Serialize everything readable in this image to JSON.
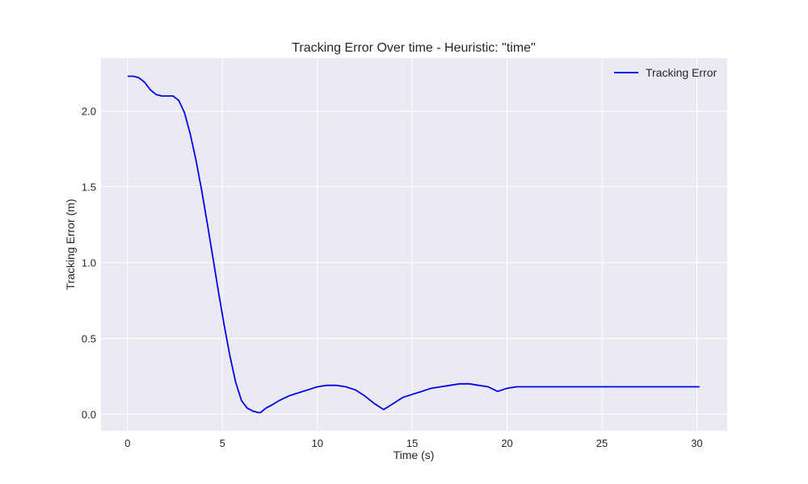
{
  "chart_data": {
    "type": "line",
    "title": "Tracking Error Over time - Heuristic: \"time\"",
    "xlabel": "Time (s)",
    "ylabel": "Tracking Error (m)",
    "xlim": [
      -1.4,
      31.6
    ],
    "ylim": [
      -0.11,
      2.35
    ],
    "xticks": [
      0,
      5,
      10,
      15,
      20,
      25,
      30
    ],
    "yticks": [
      0.0,
      0.5,
      1.0,
      1.5,
      2.0
    ],
    "xtick_labels": [
      "0",
      "5",
      "10",
      "15",
      "20",
      "25",
      "30"
    ],
    "ytick_labels": [
      "0.0",
      "0.5",
      "1.0",
      "1.5",
      "2.0"
    ],
    "grid": true,
    "legend_position": "top-right",
    "background_color": "#eaeaf2",
    "grid_color": "#ffffff",
    "series": [
      {
        "name": "Tracking Error",
        "color": "#0000ee",
        "x": [
          0,
          0.3,
          0.6,
          0.9,
          1.2,
          1.5,
          1.8,
          2.1,
          2.4,
          2.7,
          3.0,
          3.3,
          3.6,
          3.9,
          4.2,
          4.5,
          4.8,
          5.1,
          5.4,
          5.7,
          6.0,
          6.3,
          6.6,
          6.9,
          7.0,
          7.3,
          7.6,
          8.0,
          8.5,
          9.0,
          9.5,
          10.0,
          10.5,
          11.0,
          11.5,
          12.0,
          12.5,
          13.0,
          13.5,
          14.0,
          14.5,
          15.0,
          15.5,
          16.0,
          16.5,
          17.0,
          17.5,
          18.0,
          18.5,
          19.0,
          19.5,
          20.0,
          20.5,
          21.0,
          22.0,
          24.0,
          26.0,
          28.0,
          30.0,
          30.15
        ],
        "y": [
          2.23,
          2.23,
          2.22,
          2.19,
          2.14,
          2.11,
          2.1,
          2.1,
          2.1,
          2.07,
          1.99,
          1.85,
          1.68,
          1.48,
          1.26,
          1.03,
          0.8,
          0.58,
          0.38,
          0.21,
          0.09,
          0.04,
          0.02,
          0.01,
          0.01,
          0.04,
          0.06,
          0.09,
          0.12,
          0.14,
          0.16,
          0.18,
          0.19,
          0.19,
          0.18,
          0.16,
          0.12,
          0.07,
          0.03,
          0.07,
          0.11,
          0.13,
          0.15,
          0.17,
          0.18,
          0.19,
          0.2,
          0.2,
          0.19,
          0.18,
          0.15,
          0.17,
          0.18,
          0.18,
          0.18,
          0.18,
          0.18,
          0.18,
          0.18,
          0.18
        ]
      }
    ]
  }
}
